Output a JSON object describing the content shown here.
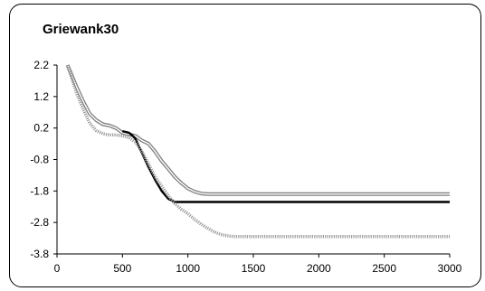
{
  "chart_data": {
    "type": "line",
    "title": "Griewank30",
    "xlabel": "",
    "ylabel": "",
    "xlim": [
      0,
      3000
    ],
    "ylim": [
      -3.8,
      2.2
    ],
    "x_ticks": [
      "0",
      "500",
      "1000",
      "1500",
      "2000",
      "2500",
      "3000"
    ],
    "y_ticks": [
      "2.2",
      "1.2",
      "0.2",
      "-0.8",
      "-1.8",
      "-2.8",
      "-3.8"
    ],
    "grid": false,
    "legend": "none",
    "series": [
      {
        "style": "gray-double",
        "color": "#7f7f7f",
        "x": [
          80,
          150,
          200,
          250,
          300,
          350,
          400,
          450,
          500,
          550,
          600,
          650,
          700,
          750,
          800,
          850,
          900,
          950,
          1000,
          1050,
          1100,
          1150,
          1200,
          1500,
          2000,
          2500,
          3000
        ],
        "values": [
          2.2,
          1.5,
          1.05,
          0.65,
          0.45,
          0.32,
          0.28,
          0.2,
          0.05,
          0.0,
          -0.05,
          -0.2,
          -0.3,
          -0.55,
          -0.85,
          -1.1,
          -1.35,
          -1.55,
          -1.72,
          -1.82,
          -1.88,
          -1.9,
          -1.9,
          -1.9,
          -1.9,
          -1.9,
          -1.9
        ]
      },
      {
        "style": "black-solid",
        "color": "#000000",
        "x": [
          500,
          550,
          580,
          600,
          650,
          700,
          750,
          800,
          850,
          900,
          950,
          1000,
          1500,
          2000,
          2500,
          3000
        ],
        "values": [
          0.1,
          0.05,
          -0.05,
          -0.15,
          -0.6,
          -1.05,
          -1.45,
          -1.8,
          -2.05,
          -2.15,
          -2.15,
          -2.15,
          -2.15,
          -2.15,
          -2.15,
          -2.15
        ]
      },
      {
        "style": "gray-dotted",
        "color": "#9a9a9a",
        "x": [
          80,
          150,
          200,
          250,
          300,
          350,
          400,
          450,
          500,
          550,
          600,
          650,
          700,
          750,
          800,
          850,
          900,
          950,
          1000,
          1050,
          1100,
          1150,
          1200,
          1250,
          1300,
          1350,
          1500,
          2000,
          2500,
          3000
        ],
        "values": [
          2.2,
          1.3,
          0.8,
          0.35,
          0.12,
          0.02,
          -0.02,
          -0.02,
          -0.05,
          -0.1,
          -0.25,
          -0.55,
          -0.95,
          -1.35,
          -1.65,
          -1.95,
          -2.2,
          -2.38,
          -2.52,
          -2.7,
          -2.85,
          -2.98,
          -3.1,
          -3.18,
          -3.22,
          -3.25,
          -3.25,
          -3.25,
          -3.25,
          -3.25
        ]
      }
    ]
  }
}
